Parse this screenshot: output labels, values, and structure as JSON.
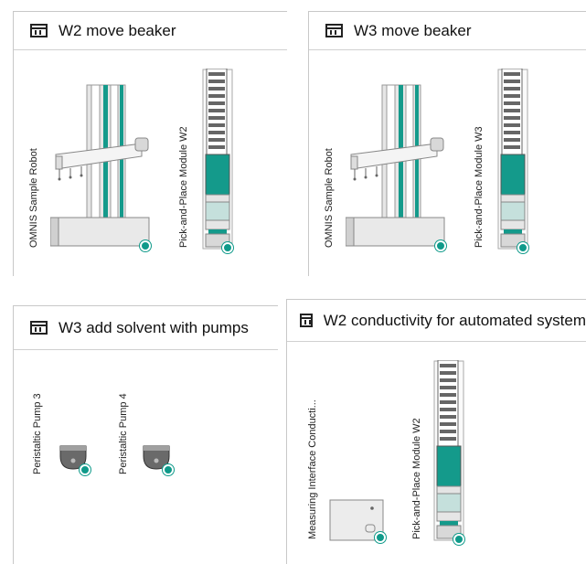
{
  "panels": [
    {
      "title": "W2 move beaker",
      "devices": [
        {
          "label": "OMNIS Sample Robot"
        },
        {
          "label": "Pick-and-Place Module W2"
        }
      ]
    },
    {
      "title": "W3 move beaker",
      "devices": [
        {
          "label": "OMNIS Sample Robot"
        },
        {
          "label": "Pick-and-Place Module W3"
        }
      ]
    },
    {
      "title": "W3 add solvent with pumps",
      "devices": [
        {
          "label": "Peristaltic Pump 3"
        },
        {
          "label": "Peristaltic Pump 4"
        }
      ]
    },
    {
      "title": "W2 conductivity for automated system",
      "devices": [
        {
          "label": "Measuring Interface Conducti..."
        },
        {
          "label": "Pick-and-Place Module W2"
        }
      ]
    }
  ],
  "colors": {
    "accent": "#0f9a8a",
    "frame": "#c8c8c8"
  }
}
